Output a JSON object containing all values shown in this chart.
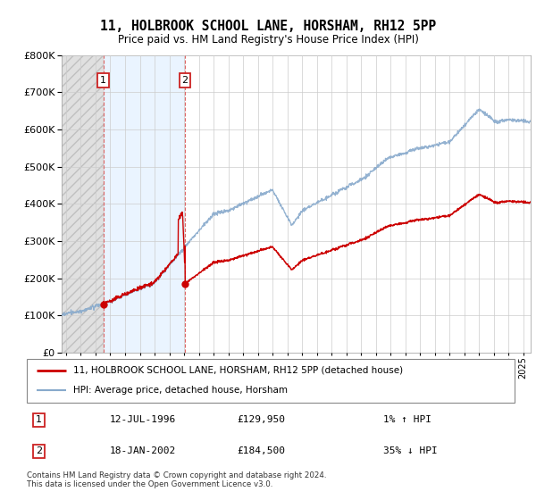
{
  "title": "11, HOLBROOK SCHOOL LANE, HORSHAM, RH12 5PP",
  "subtitle": "Price paid vs. HM Land Registry's House Price Index (HPI)",
  "legend_line1": "11, HOLBROOK SCHOOL LANE, HORSHAM, RH12 5PP (detached house)",
  "legend_line2": "HPI: Average price, detached house, Horsham",
  "footnote": "Contains HM Land Registry data © Crown copyright and database right 2024.\nThis data is licensed under the Open Government Licence v3.0.",
  "table_rows": [
    {
      "num": "1",
      "date": "12-JUL-1996",
      "price": "£129,950",
      "pct": "1% ↑ HPI"
    },
    {
      "num": "2",
      "date": "18-JAN-2002",
      "price": "£184,500",
      "pct": "35% ↓ HPI"
    }
  ],
  "t1_year": 1996.53,
  "t2_year": 2002.05,
  "t1_price": 129950,
  "t2_price": 184500,
  "ylim": [
    0,
    800000
  ],
  "xlim_start": 1993.7,
  "xlim_end": 2025.5,
  "price_color": "#cc0000",
  "hpi_color": "#88aacc",
  "grid_color": "#cccccc",
  "dashed_line_color": "#dd8888",
  "hatch_color": "#d8d8d8",
  "shaded_color": "#ddeeff"
}
